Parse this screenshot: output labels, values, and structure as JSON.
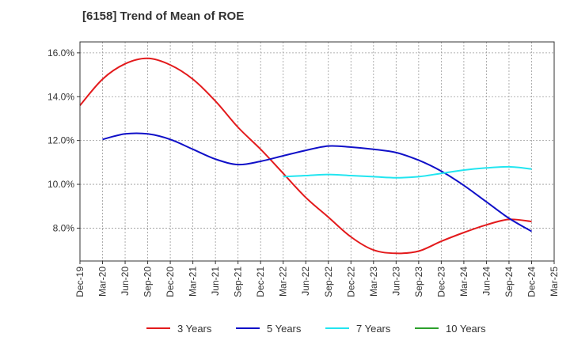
{
  "chart_data": {
    "type": "line",
    "title": "[6158]  Trend of Mean of ROE",
    "xlabel": "",
    "ylabel": "",
    "x_ticks": [
      "Dec-19",
      "Mar-20",
      "Jun-20",
      "Sep-20",
      "Dec-20",
      "Mar-21",
      "Jun-21",
      "Sep-21",
      "Dec-21",
      "Mar-22",
      "Jun-22",
      "Sep-22",
      "Dec-22",
      "Mar-23",
      "Jun-23",
      "Sep-23",
      "Dec-23",
      "Mar-24",
      "Jun-24",
      "Sep-24",
      "Dec-24",
      "Mar-25"
    ],
    "y_ticks": [
      "8.0%",
      "10.0%",
      "12.0%",
      "14.0%",
      "16.0%"
    ],
    "ylim": [
      6.5,
      16.5
    ],
    "grid": true,
    "legend_position": "bottom",
    "series": [
      {
        "name": "3 Years",
        "color": "#e31a1c",
        "x": [
          "Dec-19",
          "Mar-20",
          "Jun-20",
          "Sep-20",
          "Dec-20",
          "Mar-21",
          "Jun-21",
          "Sep-21",
          "Dec-21",
          "Mar-22",
          "Jun-22",
          "Sep-22",
          "Dec-22",
          "Mar-23",
          "Jun-23",
          "Sep-23",
          "Dec-23",
          "Mar-24",
          "Jun-24",
          "Sep-24",
          "Dec-24"
        ],
        "values": [
          13.6,
          14.8,
          15.5,
          15.75,
          15.45,
          14.8,
          13.8,
          12.6,
          11.6,
          10.5,
          9.4,
          8.5,
          7.6,
          7.0,
          6.85,
          6.95,
          7.4,
          7.8,
          8.15,
          8.4,
          8.3
        ]
      },
      {
        "name": "5 Years",
        "color": "#1010c8",
        "x": [
          "Mar-20",
          "Jun-20",
          "Sep-20",
          "Dec-20",
          "Mar-21",
          "Jun-21",
          "Sep-21",
          "Dec-21",
          "Mar-22",
          "Jun-22",
          "Sep-22",
          "Dec-22",
          "Mar-23",
          "Jun-23",
          "Sep-23",
          "Dec-23",
          "Mar-24",
          "Jun-24",
          "Sep-24",
          "Dec-24"
        ],
        "values": [
          12.05,
          12.3,
          12.3,
          12.05,
          11.6,
          11.15,
          10.9,
          11.05,
          11.3,
          11.55,
          11.75,
          11.7,
          11.6,
          11.45,
          11.1,
          10.6,
          9.95,
          9.2,
          8.45,
          7.85
        ]
      },
      {
        "name": "7 Years",
        "color": "#22e5f0",
        "x": [
          "Mar-22",
          "Jun-22",
          "Sep-22",
          "Dec-22",
          "Mar-23",
          "Jun-23",
          "Sep-23",
          "Dec-23",
          "Mar-24",
          "Jun-24",
          "Sep-24",
          "Dec-24"
        ],
        "values": [
          10.35,
          10.4,
          10.45,
          10.4,
          10.35,
          10.3,
          10.35,
          10.5,
          10.65,
          10.75,
          10.8,
          10.7
        ]
      },
      {
        "name": "10 Years",
        "color": "#2ca02c",
        "x": [],
        "values": []
      }
    ]
  }
}
